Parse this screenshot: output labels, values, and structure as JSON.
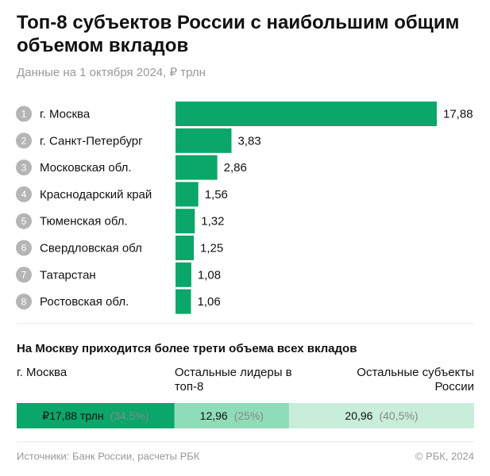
{
  "chart_data": [
    {
      "type": "bar",
      "title": "Топ-8 субъектов России с наибольшим общим объемом вкладов",
      "subtitle": "Данные на 1 октября 2024, ₽ трлн",
      "ranks": [
        1,
        2,
        3,
        4,
        5,
        6,
        7,
        8
      ],
      "categories": [
        "г. Москва",
        "г. Санкт-Петербург",
        "Московская обл.",
        "Краснодарский край",
        "Тюменская обл.",
        "Свердловская обл",
        "Татарстан",
        "Ростовская обл."
      ],
      "values": [
        17.88,
        3.83,
        2.86,
        1.56,
        1.32,
        1.25,
        1.08,
        1.06
      ],
      "value_labels": [
        "17,88",
        "3,83",
        "2,86",
        "1,56",
        "1,32",
        "1,25",
        "1,08",
        "1,06"
      ],
      "color": "#0aa66a"
    },
    {
      "type": "stacked_bar",
      "title": "На Москву приходится более трети объема всех вкладов",
      "series": [
        {
          "name": "г. Москва",
          "color": "#0aa66a",
          "values": [
            17.88
          ],
          "value_labels": [
            "₽17,88 трлн"
          ],
          "shares": [
            34.5
          ],
          "share_labels": [
            "(34,5%)"
          ]
        },
        {
          "name": "Остальные лидеры в топ-8",
          "color": "#8fdcb9",
          "values": [
            12.96
          ],
          "value_labels": [
            "12,96"
          ],
          "shares": [
            25
          ],
          "share_labels": [
            "(25%)"
          ]
        },
        {
          "name": "Остальные субъекты России",
          "color": "#c8eedb",
          "values": [
            20.96
          ],
          "value_labels": [
            "20,96"
          ],
          "shares": [
            40.5
          ],
          "share_labels": [
            "(40,5%)"
          ]
        }
      ]
    }
  ],
  "footer": {
    "source": "Источники: Банк России, расчеты РБК",
    "copyright": "© РБК, 2024"
  }
}
